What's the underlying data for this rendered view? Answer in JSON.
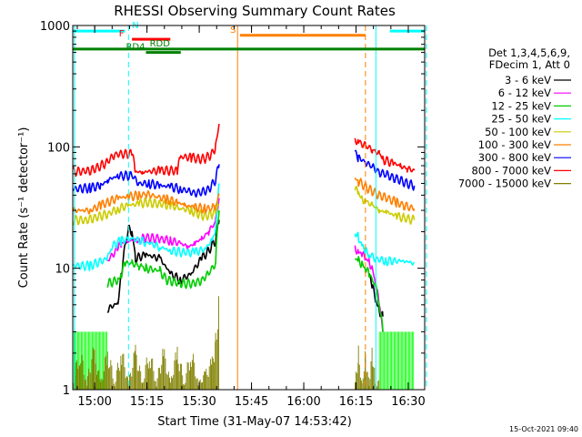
{
  "chart_data": {
    "type": "line",
    "title": "RHESSI Observing Summary Count Rates",
    "xlabel": "Start Time (31-May-07 14:53:42)",
    "ylabel": "Count Rate (s⁻¹ detector⁻¹)",
    "yscale": "log",
    "ylim": [
      1,
      1000
    ],
    "xlim_minutes": [
      0,
      101
    ],
    "yticks": [
      {
        "value": 1,
        "label": "1"
      },
      {
        "value": 10,
        "label": "10"
      },
      {
        "value": 100,
        "label": "100"
      },
      {
        "value": 1000,
        "label": "1000"
      }
    ],
    "xticks": [
      {
        "minute": 6.3,
        "label": "15:00"
      },
      {
        "minute": 21.3,
        "label": "15:15"
      },
      {
        "minute": 36.3,
        "label": "15:30"
      },
      {
        "minute": 51.3,
        "label": "15:45"
      },
      {
        "minute": 66.3,
        "label": "16:00"
      },
      {
        "minute": 81.3,
        "label": "16:15"
      },
      {
        "minute": 96.3,
        "label": "16:30"
      }
    ],
    "timestamp": "15-Oct-2021 09:40",
    "legend": {
      "header": [
        "Det 1,3,4,5,6,9,",
        "FDecim 1, Att 0"
      ],
      "position": "right"
    },
    "series": [
      {
        "name": "3 - 6 keV",
        "color": "#000000",
        "points": [
          [
            10,
            4.6
          ],
          [
            13,
            5.2
          ],
          [
            14,
            9
          ],
          [
            16,
            21
          ],
          [
            17,
            20
          ],
          [
            18,
            12
          ],
          [
            21,
            13
          ],
          [
            25,
            12
          ],
          [
            28,
            9
          ],
          [
            31,
            8
          ],
          [
            34,
            9
          ],
          [
            37,
            12
          ],
          [
            39,
            14
          ],
          [
            41,
            17
          ],
          [
            42,
            25
          ],
          [
            85,
            9
          ],
          [
            86,
            7
          ],
          [
            87,
            5.5
          ],
          [
            88,
            4.5
          ],
          [
            89,
            4
          ]
        ]
      },
      {
        "name": "6 - 12 keV",
        "color": "#ff00ff",
        "points": [
          [
            10,
            11.5
          ],
          [
            13,
            14.5
          ],
          [
            14,
            16
          ],
          [
            16,
            17
          ],
          [
            19,
            17
          ],
          [
            21,
            18
          ],
          [
            25,
            17.5
          ],
          [
            28,
            17
          ],
          [
            31,
            16
          ],
          [
            33,
            15
          ],
          [
            35,
            16
          ],
          [
            37,
            17.5
          ],
          [
            39,
            20
          ],
          [
            41,
            24
          ],
          [
            42,
            38
          ],
          [
            81,
            15
          ],
          [
            82,
            13.5
          ],
          [
            83,
            13
          ],
          [
            84,
            12
          ],
          [
            85,
            11.5
          ],
          [
            86,
            10
          ],
          [
            87,
            7
          ],
          [
            88,
            5
          ],
          [
            89,
            3
          ]
        ]
      },
      {
        "name": "12 - 25 keV",
        "color": "#00cc00",
        "points": [
          [
            10,
            7.5
          ],
          [
            13,
            8
          ],
          [
            14,
            9
          ],
          [
            15,
            11
          ],
          [
            17,
            11
          ],
          [
            19,
            10.5
          ],
          [
            20,
            10
          ],
          [
            21,
            10
          ],
          [
            25,
            9.5
          ],
          [
            27,
            8
          ],
          [
            31,
            7.5
          ],
          [
            35,
            7.5
          ],
          [
            37,
            8
          ],
          [
            39,
            9
          ],
          [
            41,
            11
          ],
          [
            42,
            30
          ],
          [
            81,
            12
          ],
          [
            82,
            11.5
          ],
          [
            83,
            11
          ],
          [
            84,
            10
          ],
          [
            85,
            9
          ],
          [
            87,
            7
          ],
          [
            88,
            5
          ],
          [
            89,
            3
          ]
        ]
      },
      {
        "name": "25 - 50 keV",
        "color": "#00ffff",
        "points": [
          [
            0,
            10.5
          ],
          [
            5,
            10.5
          ],
          [
            10,
            12
          ],
          [
            11,
            15
          ],
          [
            14,
            17
          ],
          [
            17,
            17.5
          ],
          [
            21,
            16.5
          ],
          [
            25,
            15
          ],
          [
            28,
            14
          ],
          [
            32,
            13.5
          ],
          [
            35,
            13.5
          ],
          [
            38,
            14.5
          ],
          [
            40,
            17
          ],
          [
            41,
            20
          ],
          [
            42,
            50
          ],
          [
            81,
            20
          ],
          [
            82,
            18
          ],
          [
            83,
            15
          ],
          [
            84,
            14
          ],
          [
            85,
            13
          ],
          [
            87,
            12
          ],
          [
            90,
            11.5
          ],
          [
            95,
            11.5
          ],
          [
            98,
            11
          ]
        ]
      },
      {
        "name": "50 - 100 keV",
        "color": "#cccc00",
        "points": [
          [
            0,
            25
          ],
          [
            4,
            25
          ],
          [
            6,
            26
          ],
          [
            10,
            28
          ],
          [
            13,
            31
          ],
          [
            16,
            33
          ],
          [
            19,
            34
          ],
          [
            21,
            35
          ],
          [
            25,
            34
          ],
          [
            28,
            33
          ],
          [
            31,
            31
          ],
          [
            34,
            30
          ],
          [
            36,
            28
          ],
          [
            38,
            27
          ],
          [
            40,
            28
          ],
          [
            41,
            30
          ],
          [
            42,
            33
          ],
          [
            81,
            45
          ],
          [
            82,
            42
          ],
          [
            83,
            38
          ],
          [
            84,
            36
          ],
          [
            86,
            33
          ],
          [
            88,
            30
          ],
          [
            90,
            29
          ],
          [
            93,
            27
          ],
          [
            95,
            26
          ],
          [
            98,
            25
          ]
        ]
      },
      {
        "name": "100 - 300 keV",
        "color": "#ff8000",
        "points": [
          [
            0,
            30
          ],
          [
            5,
            30
          ],
          [
            8,
            33
          ],
          [
            10,
            35
          ],
          [
            13,
            38
          ],
          [
            16,
            39
          ],
          [
            19,
            40
          ],
          [
            21,
            41
          ],
          [
            24,
            39
          ],
          [
            27,
            37
          ],
          [
            30,
            35
          ],
          [
            32,
            33
          ],
          [
            35,
            32
          ],
          [
            38,
            31
          ],
          [
            40,
            31
          ],
          [
            41,
            33
          ],
          [
            42,
            40
          ],
          [
            81,
            55
          ],
          [
            82,
            52
          ],
          [
            84,
            47
          ],
          [
            86,
            43
          ],
          [
            88,
            40
          ],
          [
            90,
            38
          ],
          [
            93,
            35
          ],
          [
            95,
            33
          ],
          [
            98,
            31
          ]
        ]
      },
      {
        "name": "300 - 800 keV",
        "color": "#0000ff",
        "points": [
          [
            0,
            45
          ],
          [
            5,
            46
          ],
          [
            8,
            48
          ],
          [
            10,
            53
          ],
          [
            13,
            58
          ],
          [
            17,
            58
          ],
          [
            19,
            50
          ],
          [
            22,
            50
          ],
          [
            25,
            48
          ],
          [
            28,
            47
          ],
          [
            31,
            45
          ],
          [
            33,
            43
          ],
          [
            35,
            42
          ],
          [
            37,
            42
          ],
          [
            39,
            45
          ],
          [
            41,
            53
          ],
          [
            42,
            72
          ],
          [
            81,
            88
          ],
          [
            82,
            82
          ],
          [
            84,
            75
          ],
          [
            86,
            68
          ],
          [
            88,
            62
          ],
          [
            90,
            59
          ],
          [
            92,
            56
          ],
          [
            94,
            53
          ],
          [
            96,
            50
          ],
          [
            98,
            48
          ]
        ]
      },
      {
        "name": "800 - 7000 keV",
        "color": "#ff0000",
        "points": [
          [
            0,
            63
          ],
          [
            4,
            63
          ],
          [
            6,
            65
          ],
          [
            10,
            75
          ],
          [
            12,
            87
          ],
          [
            17,
            88
          ],
          [
            18,
            62
          ],
          [
            20,
            62
          ],
          [
            25,
            64
          ],
          [
            30,
            64
          ],
          [
            31,
            83
          ],
          [
            34,
            82
          ],
          [
            36,
            80
          ],
          [
            38,
            80
          ],
          [
            40,
            88
          ],
          [
            41,
            100
          ],
          [
            42,
            155
          ],
          [
            81,
            115
          ],
          [
            82,
            110
          ],
          [
            84,
            102
          ],
          [
            86,
            95
          ],
          [
            88,
            88
          ],
          [
            89,
            79
          ],
          [
            92,
            73
          ],
          [
            94,
            70
          ],
          [
            96,
            66
          ],
          [
            98,
            64
          ]
        ]
      },
      {
        "name": "7000 - 15000 keV",
        "color": "#808000",
        "points": [
          [
            0,
            1.1
          ],
          [
            2,
            1.9
          ],
          [
            4,
            1.1
          ],
          [
            6,
            1.9
          ],
          [
            8,
            1.1
          ],
          [
            10,
            1.9
          ],
          [
            12,
            1.1
          ],
          [
            14,
            1.9
          ],
          [
            16,
            1.1
          ],
          [
            18,
            1.9
          ],
          [
            20,
            1.1
          ],
          [
            22,
            1.9
          ],
          [
            24,
            1.1
          ],
          [
            26,
            1.9
          ],
          [
            28,
            1.1
          ],
          [
            30,
            1.9
          ],
          [
            32,
            1.1
          ],
          [
            34,
            1.9
          ],
          [
            36,
            1.1
          ],
          [
            38,
            1.3
          ],
          [
            40,
            1.6
          ],
          [
            41,
            2.5
          ],
          [
            42,
            5.0
          ],
          [
            81,
            1.1
          ],
          [
            82,
            1.9
          ],
          [
            83,
            1.1
          ],
          [
            84,
            1.9
          ],
          [
            85,
            1.1
          ],
          [
            86,
            1.9
          ],
          [
            87,
            1.0
          ],
          [
            88,
            1.2
          ]
        ]
      }
    ],
    "green_spikes": {
      "color": "#00ff00",
      "level": 3.0,
      "intervals": [
        [
          0,
          10
        ],
        [
          88,
          98
        ]
      ]
    },
    "annotations": {
      "bars": [
        {
          "label": "N",
          "color": "#00ffff",
          "y": 900,
          "segments": [
            [
              0,
              15
            ],
            [
              91,
              101
            ]
          ],
          "label_minute": 18
        },
        {
          "label": "F",
          "color": "#ff0000",
          "y": 770,
          "segments": [
            [
              17,
              28
            ]
          ],
          "label_minute": 14
        },
        {
          "label": "RDD",
          "color": "#008000",
          "y": 640,
          "segments": [
            [
              0,
              101
            ]
          ],
          "label_minute": 25
        },
        {
          "label": "RD4",
          "color": "#008000",
          "y": 600,
          "segments": [
            [
              21,
              31
            ]
          ],
          "label_minute": 18
        },
        {
          "label": "S",
          "color": "#ff8000",
          "y": 830,
          "segments": [
            [
              48,
              84
            ]
          ],
          "label_minute": 46
        }
      ],
      "vlines": [
        {
          "minute": 0.5,
          "color": "#00ffff",
          "style": "solid"
        },
        {
          "minute": 16,
          "color": "#00ffff",
          "style": "dashed"
        },
        {
          "minute": 47.3,
          "color": "#ff8000",
          "style": "solid"
        },
        {
          "minute": 84,
          "color": "#ff8000",
          "style": "dashed"
        },
        {
          "minute": 87,
          "color": "#00ffff",
          "style": "solid"
        },
        {
          "minute": 101.5,
          "color": "#00ffff",
          "style": "dashed"
        }
      ]
    }
  }
}
